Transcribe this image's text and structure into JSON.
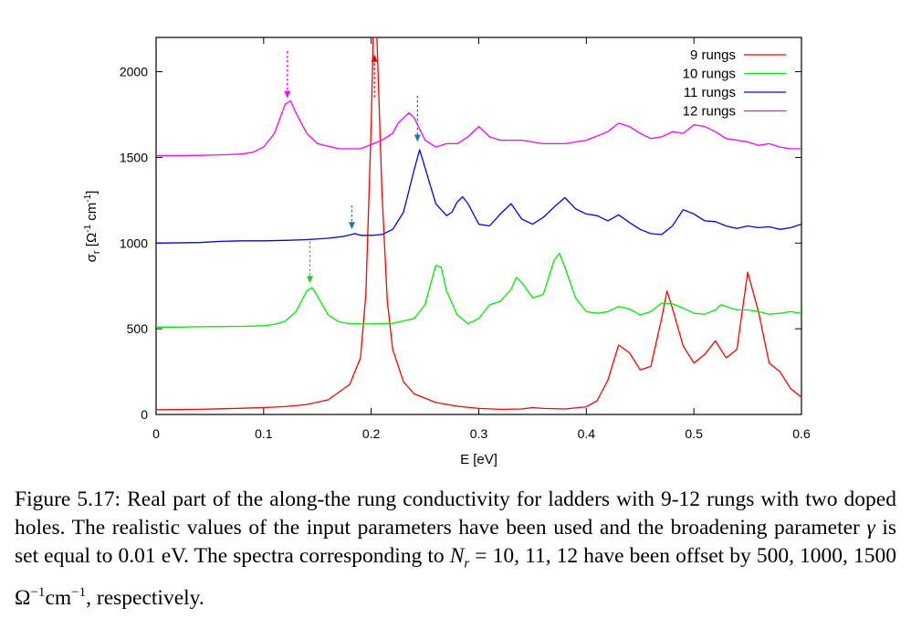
{
  "chart_data": {
    "type": "line",
    "xlabel": "E [eV]",
    "ylabel": "σ",
    "ylabel_sub": "r",
    "ylabel_units": "[Ω",
    "ylabel_units_exp1": "-1",
    "ylabel_units_mid": " cm",
    "ylabel_units_exp2": "-1",
    "ylabel_units_end": "]",
    "xlim": [
      0,
      0.6
    ],
    "ylim": [
      0,
      2200
    ],
    "x_ticks": [
      "0",
      "0.1",
      "0.2",
      "0.3",
      "0.4",
      "0.5",
      "0.6"
    ],
    "x_tick_values": [
      0,
      0.1,
      0.2,
      0.3,
      0.4,
      0.5,
      0.6
    ],
    "y_ticks": [
      "0",
      "500",
      "1000",
      "1500",
      "2000"
    ],
    "y_tick_values": [
      0,
      500,
      1000,
      1500,
      2000
    ],
    "legend_position": "top-right",
    "series": [
      {
        "name": "9 rungs",
        "color": "#ff0000",
        "points": [
          [
            0,
            27
          ],
          [
            0.02,
            28
          ],
          [
            0.04,
            30
          ],
          [
            0.06,
            33
          ],
          [
            0.08,
            36
          ],
          [
            0.1,
            40
          ],
          [
            0.12,
            46
          ],
          [
            0.14,
            58
          ],
          [
            0.16,
            85
          ],
          [
            0.18,
            175
          ],
          [
            0.19,
            330
          ],
          [
            0.195,
            700
          ],
          [
            0.2,
            1700
          ],
          [
            0.202,
            2250
          ],
          [
            0.205,
            2250
          ],
          [
            0.21,
            1300
          ],
          [
            0.215,
            660
          ],
          [
            0.22,
            380
          ],
          [
            0.23,
            190
          ],
          [
            0.24,
            120
          ],
          [
            0.26,
            70
          ],
          [
            0.28,
            48
          ],
          [
            0.3,
            35
          ],
          [
            0.32,
            30
          ],
          [
            0.34,
            32
          ],
          [
            0.35,
            40
          ],
          [
            0.36,
            35
          ],
          [
            0.38,
            32
          ],
          [
            0.4,
            45
          ],
          [
            0.41,
            80
          ],
          [
            0.42,
            200
          ],
          [
            0.43,
            405
          ],
          [
            0.44,
            360
          ],
          [
            0.45,
            260
          ],
          [
            0.46,
            280
          ],
          [
            0.47,
            560
          ],
          [
            0.475,
            720
          ],
          [
            0.48,
            620
          ],
          [
            0.49,
            400
          ],
          [
            0.5,
            300
          ],
          [
            0.51,
            350
          ],
          [
            0.52,
            430
          ],
          [
            0.53,
            330
          ],
          [
            0.54,
            380
          ],
          [
            0.55,
            830
          ],
          [
            0.56,
            600
          ],
          [
            0.57,
            300
          ],
          [
            0.58,
            250
          ],
          [
            0.59,
            150
          ],
          [
            0.6,
            100
          ]
        ]
      },
      {
        "name": "10 rungs",
        "color": "#00ee00",
        "points": [
          [
            0,
            510
          ],
          [
            0.02,
            510
          ],
          [
            0.04,
            512
          ],
          [
            0.06,
            513
          ],
          [
            0.08,
            514
          ],
          [
            0.1,
            518
          ],
          [
            0.11,
            525
          ],
          [
            0.12,
            545
          ],
          [
            0.13,
            600
          ],
          [
            0.14,
            720
          ],
          [
            0.145,
            740
          ],
          [
            0.15,
            690
          ],
          [
            0.16,
            580
          ],
          [
            0.17,
            540
          ],
          [
            0.18,
            530
          ],
          [
            0.2,
            528
          ],
          [
            0.22,
            532
          ],
          [
            0.24,
            560
          ],
          [
            0.25,
            640
          ],
          [
            0.26,
            870
          ],
          [
            0.265,
            860
          ],
          [
            0.27,
            720
          ],
          [
            0.28,
            580
          ],
          [
            0.29,
            530
          ],
          [
            0.3,
            560
          ],
          [
            0.31,
            640
          ],
          [
            0.32,
            660
          ],
          [
            0.33,
            730
          ],
          [
            0.335,
            800
          ],
          [
            0.34,
            770
          ],
          [
            0.35,
            680
          ],
          [
            0.36,
            700
          ],
          [
            0.37,
            900
          ],
          [
            0.375,
            940
          ],
          [
            0.38,
            860
          ],
          [
            0.39,
            680
          ],
          [
            0.4,
            600
          ],
          [
            0.41,
            590
          ],
          [
            0.42,
            600
          ],
          [
            0.43,
            630
          ],
          [
            0.44,
            615
          ],
          [
            0.45,
            580
          ],
          [
            0.46,
            600
          ],
          [
            0.47,
            650
          ],
          [
            0.48,
            645
          ],
          [
            0.49,
            620
          ],
          [
            0.5,
            590
          ],
          [
            0.51,
            585
          ],
          [
            0.52,
            610
          ],
          [
            0.525,
            640
          ],
          [
            0.53,
            630
          ],
          [
            0.54,
            610
          ],
          [
            0.55,
            610
          ],
          [
            0.56,
            600
          ],
          [
            0.57,
            585
          ],
          [
            0.58,
            590
          ],
          [
            0.59,
            600
          ],
          [
            0.6,
            590
          ]
        ]
      },
      {
        "name": "11 rungs",
        "color": "#0000ff",
        "points": [
          [
            0,
            1000
          ],
          [
            0.04,
            1003
          ],
          [
            0.06,
            1010
          ],
          [
            0.08,
            1013
          ],
          [
            0.1,
            1013
          ],
          [
            0.12,
            1016
          ],
          [
            0.14,
            1020
          ],
          [
            0.16,
            1028
          ],
          [
            0.175,
            1040
          ],
          [
            0.185,
            1055
          ],
          [
            0.19,
            1045
          ],
          [
            0.2,
            1045
          ],
          [
            0.21,
            1050
          ],
          [
            0.22,
            1080
          ],
          [
            0.23,
            1180
          ],
          [
            0.24,
            1430
          ],
          [
            0.245,
            1545
          ],
          [
            0.25,
            1440
          ],
          [
            0.26,
            1230
          ],
          [
            0.27,
            1160
          ],
          [
            0.275,
            1180
          ],
          [
            0.28,
            1240
          ],
          [
            0.285,
            1270
          ],
          [
            0.29,
            1230
          ],
          [
            0.3,
            1110
          ],
          [
            0.31,
            1100
          ],
          [
            0.32,
            1170
          ],
          [
            0.33,
            1230
          ],
          [
            0.34,
            1140
          ],
          [
            0.35,
            1110
          ],
          [
            0.36,
            1150
          ],
          [
            0.37,
            1210
          ],
          [
            0.38,
            1265
          ],
          [
            0.39,
            1200
          ],
          [
            0.4,
            1170
          ],
          [
            0.41,
            1160
          ],
          [
            0.42,
            1130
          ],
          [
            0.43,
            1165
          ],
          [
            0.44,
            1120
          ],
          [
            0.45,
            1080
          ],
          [
            0.46,
            1055
          ],
          [
            0.47,
            1050
          ],
          [
            0.48,
            1100
          ],
          [
            0.49,
            1195
          ],
          [
            0.5,
            1170
          ],
          [
            0.51,
            1130
          ],
          [
            0.52,
            1125
          ],
          [
            0.53,
            1100
          ],
          [
            0.54,
            1085
          ],
          [
            0.55,
            1100
          ],
          [
            0.56,
            1090
          ],
          [
            0.57,
            1095
          ],
          [
            0.58,
            1080
          ],
          [
            0.59,
            1090
          ],
          [
            0.6,
            1110
          ]
        ]
      },
      {
        "name": "12 rungs",
        "color": "#ff00ff",
        "points": [
          [
            0,
            1510
          ],
          [
            0.02,
            1510
          ],
          [
            0.04,
            1512
          ],
          [
            0.06,
            1515
          ],
          [
            0.08,
            1520
          ],
          [
            0.09,
            1530
          ],
          [
            0.1,
            1560
          ],
          [
            0.11,
            1640
          ],
          [
            0.12,
            1810
          ],
          [
            0.125,
            1830
          ],
          [
            0.13,
            1760
          ],
          [
            0.14,
            1640
          ],
          [
            0.15,
            1580
          ],
          [
            0.17,
            1550
          ],
          [
            0.19,
            1550
          ],
          [
            0.21,
            1600
          ],
          [
            0.22,
            1640
          ],
          [
            0.225,
            1700
          ],
          [
            0.23,
            1730
          ],
          [
            0.235,
            1760
          ],
          [
            0.24,
            1730
          ],
          [
            0.25,
            1600
          ],
          [
            0.26,
            1560
          ],
          [
            0.27,
            1580
          ],
          [
            0.28,
            1580
          ],
          [
            0.29,
            1620
          ],
          [
            0.3,
            1680
          ],
          [
            0.31,
            1620
          ],
          [
            0.32,
            1600
          ],
          [
            0.34,
            1600
          ],
          [
            0.36,
            1580
          ],
          [
            0.38,
            1580
          ],
          [
            0.4,
            1600
          ],
          [
            0.42,
            1650
          ],
          [
            0.43,
            1700
          ],
          [
            0.44,
            1680
          ],
          [
            0.45,
            1640
          ],
          [
            0.46,
            1610
          ],
          [
            0.47,
            1620
          ],
          [
            0.48,
            1650
          ],
          [
            0.49,
            1640
          ],
          [
            0.5,
            1690
          ],
          [
            0.51,
            1680
          ],
          [
            0.52,
            1650
          ],
          [
            0.53,
            1610
          ],
          [
            0.54,
            1600
          ],
          [
            0.55,
            1590
          ],
          [
            0.56,
            1570
          ],
          [
            0.57,
            1580
          ],
          [
            0.58,
            1560
          ],
          [
            0.59,
            1550
          ],
          [
            0.6,
            1550
          ]
        ]
      }
    ],
    "annotations": [
      {
        "label": "arrow-12-rungs",
        "color": "#ff00ff",
        "x": 0.122,
        "y_start": 2120,
        "y_end": 1845
      },
      {
        "label": "arrow-9-rungs",
        "color": "#dd0000",
        "x": 0.203,
        "y_start": 1850,
        "y_end": 2100
      },
      {
        "label": "arrow-11-rungs-main",
        "color": "#1f77b4",
        "x": 0.243,
        "y_start": 1860,
        "y_end": 1590
      },
      {
        "label": "arrow-11-rungs-small",
        "color": "#1f77b4",
        "x": 0.182,
        "y_start": 1220,
        "y_end": 1080
      },
      {
        "label": "arrow-10-rungs",
        "color": "#22cc22",
        "x": 0.143,
        "y_start": 1010,
        "y_end": 765
      }
    ]
  },
  "caption": {
    "lead": "Figure 5.17: Real part of the along-the rung conductivity for ladders with 9-12 rungs with two doped holes. The realistic values of the input parameters have been used and the broadening parameter ",
    "gamma": "γ",
    "mid": " is set equal to 0.01 eV. The spectra corresponding to ",
    "n_var": "N",
    "n_sub": "r",
    "eq": " = 10, 11, 12 have been offset by 500, 1000, 1500 Ω",
    "exp1": "−1",
    "cm": "cm",
    "exp2": "−1",
    "tail": ", respectively."
  }
}
